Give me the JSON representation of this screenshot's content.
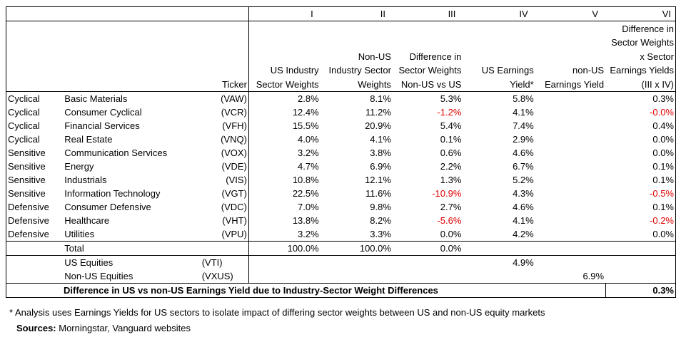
{
  "columns_roman": [
    "I",
    "II",
    "III",
    "IV",
    "V",
    "VI"
  ],
  "headers": {
    "ticker": "Ticker",
    "col1": [
      "US Industry",
      "Sector Weights"
    ],
    "col2": [
      "Non-US",
      "Industry Sector",
      "Weights"
    ],
    "col3": [
      "Difference in",
      "Sector Weights",
      "Non-US vs US"
    ],
    "col4": [
      "US Earnings",
      "Yield*"
    ],
    "col5": [
      "non-US",
      "Earnings Yield"
    ],
    "col6": [
      "Difference in",
      "Sector Weights",
      "x Sector",
      "Earnings Yields",
      "(III x IV)"
    ]
  },
  "rows": [
    {
      "type": "Cyclical",
      "sector": "Basic Materials",
      "ticker": "(VAW)",
      "us_w": "2.8%",
      "nonus_w": "8.1%",
      "diff": "5.3%",
      "us_ey": "5.8%",
      "prod": "0.3%"
    },
    {
      "type": "Cyclical",
      "sector": "Consumer Cyclical",
      "ticker": "(VCR)",
      "us_w": "12.4%",
      "nonus_w": "11.2%",
      "diff": "-1.2%",
      "us_ey": "4.1%",
      "prod": "-0.0%"
    },
    {
      "type": "Cyclical",
      "sector": "Financial Services",
      "ticker": "(VFH)",
      "us_w": "15.5%",
      "nonus_w": "20.9%",
      "diff": "5.4%",
      "us_ey": "7.4%",
      "prod": "0.4%"
    },
    {
      "type": "Cyclical",
      "sector": "Real Estate",
      "ticker": "(VNQ)",
      "us_w": "4.0%",
      "nonus_w": "4.1%",
      "diff": "0.1%",
      "us_ey": "2.9%",
      "prod": "0.0%"
    },
    {
      "type": "Sensitive",
      "sector": "Communication Services",
      "ticker": "(VOX)",
      "us_w": "3.2%",
      "nonus_w": "3.8%",
      "diff": "0.6%",
      "us_ey": "4.6%",
      "prod": "0.0%"
    },
    {
      "type": "Sensitive",
      "sector": "Energy",
      "ticker": "(VDE)",
      "us_w": "4.7%",
      "nonus_w": "6.9%",
      "diff": "2.2%",
      "us_ey": "6.7%",
      "prod": "0.1%"
    },
    {
      "type": "Sensitive",
      "sector": "Industrials",
      "ticker": "(VIS)",
      "us_w": "10.8%",
      "nonus_w": "12.1%",
      "diff": "1.3%",
      "us_ey": "5.2%",
      "prod": "0.1%"
    },
    {
      "type": "Sensitive",
      "sector": "Information Technology",
      "ticker": "(VGT)",
      "us_w": "22.5%",
      "nonus_w": "11.6%",
      "diff": "-10.9%",
      "us_ey": "4.3%",
      "prod": "-0.5%"
    },
    {
      "type": "Defensive",
      "sector": "Consumer Defensive",
      "ticker": "(VDC)",
      "us_w": "7.0%",
      "nonus_w": "9.8%",
      "diff": "2.7%",
      "us_ey": "4.6%",
      "prod": "0.1%"
    },
    {
      "type": "Defensive",
      "sector": "Healthcare",
      "ticker": "(VHT)",
      "us_w": "13.8%",
      "nonus_w": "8.2%",
      "diff": "-5.6%",
      "us_ey": "4.1%",
      "prod": "-0.2%"
    },
    {
      "type": "Defensive",
      "sector": "Utilities",
      "ticker": "(VPU)",
      "us_w": "3.2%",
      "nonus_w": "3.3%",
      "diff": "0.0%",
      "us_ey": "4.2%",
      "prod": "0.0%"
    }
  ],
  "total": {
    "label": "Total",
    "us_w": "100.0%",
    "nonus_w": "100.0%",
    "diff": "0.0%"
  },
  "us_equities": {
    "label": "US Equities",
    "ticker": "(VTI)",
    "us_ey": "4.9%"
  },
  "nonus_equities": {
    "label": "Non-US Equities",
    "ticker": "(VXUS)",
    "nonus_ey": "6.9%"
  },
  "summary": {
    "label": "Difference in US vs non-US Earnings Yield due to Industry-Sector Weight Differences",
    "value": "0.3%"
  },
  "footnote": "* Analysis uses Earnings Yields for US sectors to isolate impact of differing sector weights between US and non-US equity markets",
  "sources_label": "Sources:",
  "sources_text": " Morningstar, Vanguard websites",
  "colors": {
    "negative": "#e00000"
  }
}
